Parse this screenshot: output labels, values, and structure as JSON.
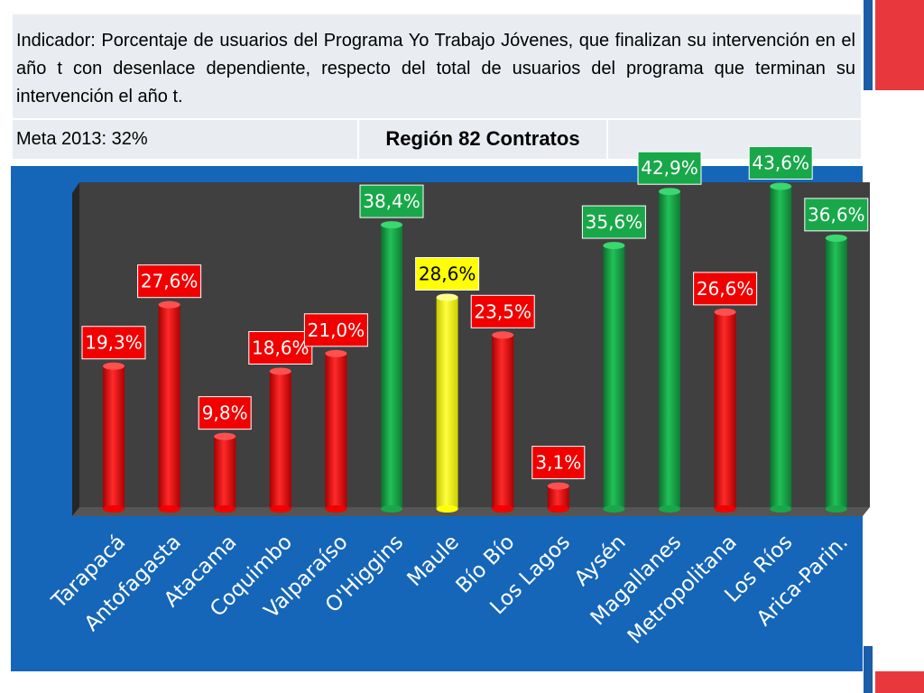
{
  "header": {
    "indicator": "Indicador: Porcentaje de usuarios del Programa Yo Trabajo Jóvenes, que finalizan su intervención en el año t con desenlace dependiente, respecto del total de usuarios del programa que terminan su intervención el año t.",
    "meta": "Meta 2013: 32%",
    "region_title": "Región 82 Contratos"
  },
  "colors": {
    "panel": "#1566b8",
    "plot": "#3f3f3f",
    "red": "#f20000",
    "green": "#18a84a",
    "yellow": "#ffff00",
    "accent_red": "#e8383d",
    "accent_blue": "#1a5da8"
  },
  "chart_data": {
    "type": "bar",
    "title": "",
    "xlabel": "",
    "ylabel": "",
    "ylim": [
      0,
      45
    ],
    "grid": false,
    "categories": [
      "Tarapacá",
      "Antofagasta",
      "Atacama",
      "Coquimbo",
      "Valparaíso",
      "O'Higgins",
      "Maule",
      "Bío Bío",
      "Los Lagos",
      "Aysén",
      "Magallanes",
      "Metropolitana",
      "Los Ríos",
      "Arica-Parin."
    ],
    "values": [
      19.3,
      27.6,
      9.8,
      18.6,
      21.0,
      38.4,
      28.6,
      23.5,
      3.1,
      35.6,
      42.9,
      26.6,
      43.6,
      36.6
    ],
    "labels": [
      "19,3%",
      "27,6%",
      "9,8%",
      "18,6%",
      "21,0%",
      "38,4%",
      "28,6%",
      "23,5%",
      "3,1%",
      "35,6%",
      "42,9%",
      "26,6%",
      "43,6%",
      "36,6%"
    ],
    "bar_colors": [
      "red",
      "red",
      "red",
      "red",
      "red",
      "green",
      "yellow",
      "red",
      "red",
      "green",
      "green",
      "red",
      "green",
      "green"
    ]
  }
}
